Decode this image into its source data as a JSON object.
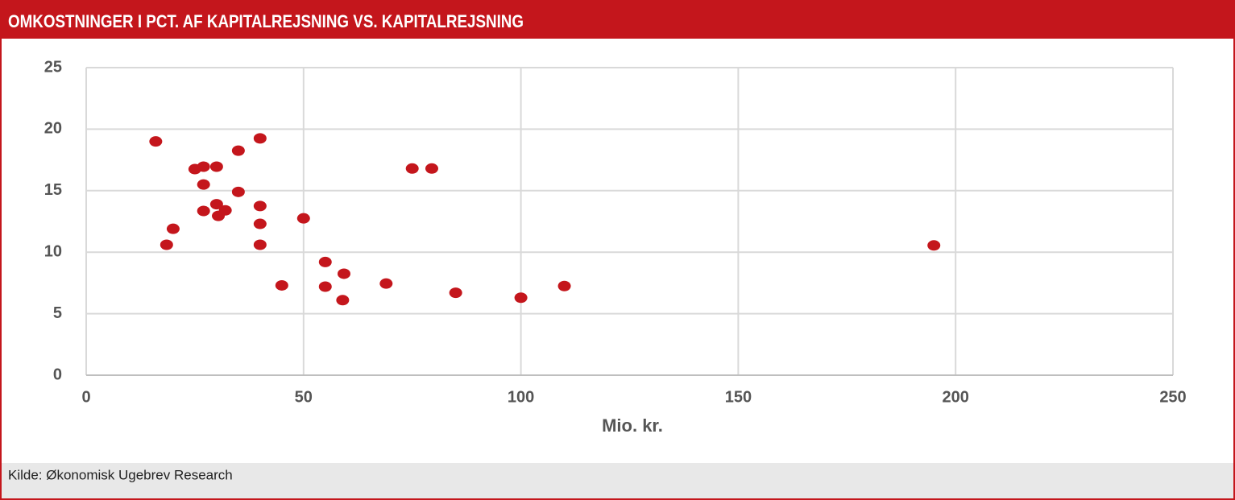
{
  "chart_data": {
    "type": "scatter",
    "title": "OMKOSTNINGER I PCT. AF KAPITALREJSNING VS. KAPITALREJSNING",
    "x_label": "Mio. kr.",
    "source": "Kilde: Økonomisk Ugebrev Research",
    "color": "#c4161c",
    "grid": true,
    "xlim": [
      0,
      250
    ],
    "xticks": [
      0,
      50,
      100,
      150,
      200,
      250
    ],
    "ylim": [
      0,
      25
    ],
    "yticks": [
      0,
      5,
      10,
      15,
      20,
      25
    ],
    "x": [
      16,
      18.5,
      20,
      25,
      27,
      27,
      27,
      30,
      30,
      30.4,
      32,
      35,
      35,
      40,
      40,
      40,
      40,
      45,
      50,
      55,
      55,
      59,
      59.3,
      69,
      75,
      79.5,
      85,
      100,
      110,
      195
    ],
    "values": [
      19,
      10.6,
      11.9,
      16.75,
      16.95,
      15.5,
      13.35,
      16.95,
      13.9,
      12.95,
      13.4,
      18.25,
      14.9,
      19.25,
      13.75,
      12.3,
      10.6,
      7.3,
      12.75,
      9.2,
      7.2,
      6.1,
      8.25,
      7.45,
      16.8,
      16.8,
      6.7,
      6.3,
      7.25,
      10.55
    ]
  }
}
